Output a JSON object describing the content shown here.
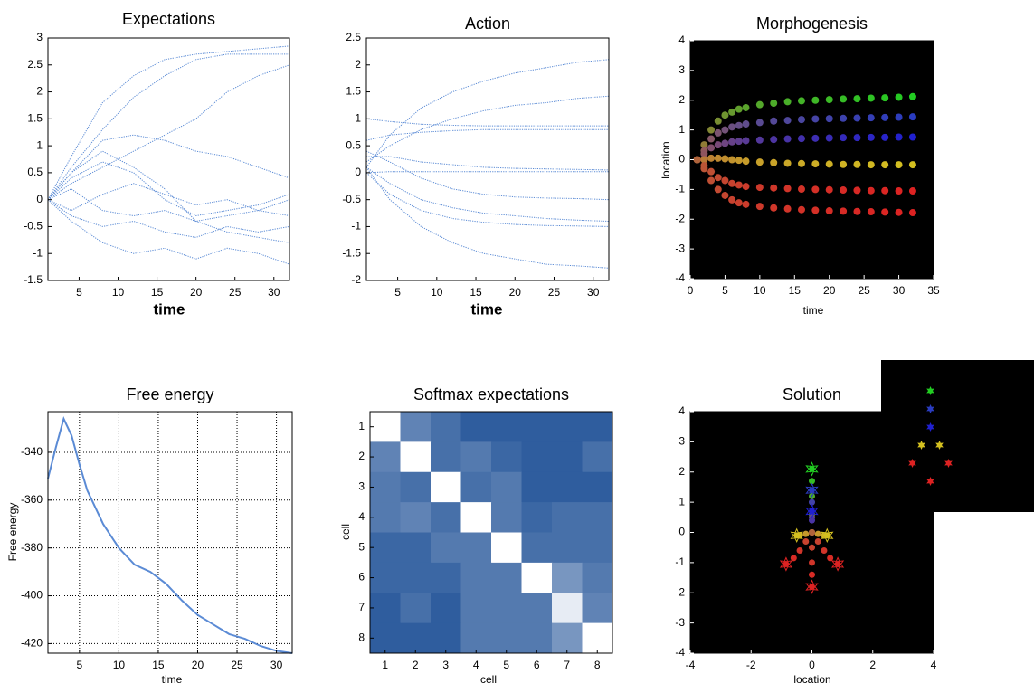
{
  "chart_data": [
    {
      "type": "line",
      "title": "Expectations",
      "x_label": "time",
      "x": [
        1,
        4,
        8,
        12,
        16,
        20,
        24,
        28,
        32
      ],
      "series": [
        {
          "values": [
            0,
            0.8,
            1.8,
            2.3,
            2.6,
            2.7,
            2.75,
            2.8,
            2.85
          ]
        },
        {
          "values": [
            0,
            0.6,
            1.3,
            1.9,
            2.3,
            2.6,
            2.7,
            2.7,
            2.7
          ]
        },
        {
          "values": [
            0,
            0.3,
            0.6,
            0.9,
            1.2,
            1.5,
            2.0,
            2.3,
            2.5
          ]
        },
        {
          "values": [
            0,
            0.5,
            1.1,
            1.2,
            1.1,
            0.9,
            0.8,
            0.6,
            0.4
          ]
        },
        {
          "values": [
            0,
            0.4,
            0.7,
            0.5,
            0.0,
            -0.3,
            -0.2,
            -0.1,
            0.1
          ]
        },
        {
          "values": [
            0,
            -0.3,
            -0.5,
            -0.4,
            -0.6,
            -0.7,
            -0.5,
            -0.6,
            -0.5
          ]
        },
        {
          "values": [
            0,
            -0.4,
            -0.8,
            -1.0,
            -0.9,
            -1.1,
            -0.9,
            -1.0,
            -1.2
          ]
        },
        {
          "values": [
            0,
            0.2,
            -0.2,
            -0.3,
            -0.2,
            -0.4,
            -0.3,
            -0.2,
            -0.3
          ]
        },
        {
          "values": [
            0,
            -0.2,
            0.1,
            0.3,
            0.1,
            -0.1,
            0.0,
            -0.2,
            0.0
          ]
        },
        {
          "values": [
            0,
            0.5,
            0.9,
            0.6,
            0.2,
            -0.4,
            -0.6,
            -0.7,
            -0.8
          ]
        }
      ],
      "color": "#5b8bd5",
      "line_style": "dotted",
      "xlim": [
        1,
        32
      ],
      "xticks": [
        5,
        10,
        15,
        20,
        25,
        30
      ],
      "ylim": [
        -1.5,
        3
      ],
      "yticks": [
        -1.5,
        -1,
        -0.5,
        0,
        0.5,
        1,
        1.5,
        2,
        2.5,
        3
      ]
    },
    {
      "type": "line",
      "title": "Action",
      "x_label": "time",
      "x": [
        1,
        4,
        8,
        12,
        16,
        20,
        24,
        28,
        32
      ],
      "series": [
        {
          "values": [
            1.0,
            0.95,
            0.9,
            0.88,
            0.87,
            0.87,
            0.87,
            0.87,
            0.87
          ]
        },
        {
          "values": [
            0.6,
            0.7,
            0.75,
            0.78,
            0.8,
            0.8,
            0.8,
            0.8,
            0.8
          ]
        },
        {
          "values": [
            0.1,
            0.7,
            1.2,
            1.5,
            1.7,
            1.85,
            1.95,
            2.05,
            2.1
          ]
        },
        {
          "values": [
            0.2,
            0.5,
            0.8,
            1.0,
            1.15,
            1.25,
            1.3,
            1.38,
            1.42
          ]
        },
        {
          "values": [
            0.3,
            0.3,
            0.2,
            0.15,
            0.1,
            0.08,
            0.07,
            0.06,
            0.05
          ]
        },
        {
          "values": [
            0.0,
            0.02,
            0.02,
            0.02,
            0.02,
            0.02,
            0.02,
            0.02,
            0.02
          ]
        },
        {
          "values": [
            0.4,
            0.2,
            -0.1,
            -0.3,
            -0.4,
            -0.45,
            -0.47,
            -0.48,
            -0.5
          ]
        },
        {
          "values": [
            0.1,
            -0.2,
            -0.5,
            -0.65,
            -0.75,
            -0.8,
            -0.85,
            -0.88,
            -0.9
          ]
        },
        {
          "values": [
            0.0,
            -0.4,
            -0.7,
            -0.85,
            -0.92,
            -0.96,
            -0.98,
            -0.99,
            -1.0
          ]
        },
        {
          "values": [
            0.1,
            -0.5,
            -1.0,
            -1.3,
            -1.5,
            -1.6,
            -1.7,
            -1.73,
            -1.77
          ]
        }
      ],
      "color": "#5b8bd5",
      "line_style": "dotted",
      "xlim": [
        1,
        32
      ],
      "xticks": [
        5,
        10,
        15,
        20,
        25,
        30
      ],
      "ylim": [
        -2,
        2.5
      ],
      "yticks": [
        -2,
        -1.5,
        -1,
        -0.5,
        0,
        0.5,
        1,
        1.5,
        2,
        2.5
      ]
    },
    {
      "type": "scatter",
      "title": "Morphogenesis",
      "x_label": "time",
      "y_label": "location",
      "x": [
        1,
        2,
        3,
        4,
        5,
        6,
        7,
        8,
        10,
        12,
        14,
        16,
        18,
        20,
        22,
        24,
        26,
        28,
        30,
        32
      ],
      "series": [
        {
          "color": "#22cc22",
          "values": [
            0,
            0.5,
            1.0,
            1.3,
            1.5,
            1.6,
            1.7,
            1.75,
            1.85,
            1.9,
            1.95,
            1.98,
            2.0,
            2.02,
            2.04,
            2.05,
            2.07,
            2.08,
            2.1,
            2.12
          ]
        },
        {
          "color": "#2a3cc0",
          "values": [
            0,
            0.3,
            0.7,
            0.9,
            1.0,
            1.1,
            1.15,
            1.2,
            1.25,
            1.3,
            1.32,
            1.35,
            1.37,
            1.38,
            1.39,
            1.4,
            1.41,
            1.42,
            1.43,
            1.44
          ]
        },
        {
          "color": "#2020d0",
          "values": [
            0,
            0.2,
            0.4,
            0.5,
            0.55,
            0.6,
            0.62,
            0.64,
            0.66,
            0.68,
            0.7,
            0.71,
            0.72,
            0.73,
            0.74,
            0.74,
            0.75,
            0.75,
            0.76,
            0.76
          ]
        },
        {
          "color": "#d4c020",
          "values": [
            0,
            0,
            0.05,
            0.05,
            0.03,
            0.0,
            -0.02,
            -0.05,
            -0.08,
            -0.1,
            -0.12,
            -0.13,
            -0.14,
            -0.15,
            -0.16,
            -0.16,
            -0.17,
            -0.17,
            -0.17,
            -0.17
          ]
        },
        {
          "color": "#dd2222",
          "values": [
            0,
            -0.2,
            -0.4,
            -0.6,
            -0.7,
            -0.8,
            -0.85,
            -0.9,
            -0.93,
            -0.95,
            -0.97,
            -0.99,
            -1.0,
            -1.01,
            -1.02,
            -1.03,
            -1.04,
            -1.04,
            -1.05,
            -1.05
          ]
        },
        {
          "color": "#dd2222",
          "values": [
            0,
            -0.3,
            -0.7,
            -1.0,
            -1.2,
            -1.35,
            -1.45,
            -1.5,
            -1.57,
            -1.62,
            -1.65,
            -1.68,
            -1.7,
            -1.72,
            -1.73,
            -1.74,
            -1.75,
            -1.76,
            -1.77,
            -1.78
          ]
        }
      ],
      "start_color": "#b0643c",
      "background": "#000000",
      "xlim": [
        0,
        35
      ],
      "xticks": [
        0,
        5,
        10,
        15,
        20,
        25,
        30,
        35
      ],
      "ylim": [
        -4,
        4
      ],
      "yticks": [
        -4,
        -3,
        -2,
        -1,
        0,
        1,
        2,
        3,
        4
      ]
    },
    {
      "type": "line",
      "title": "Free energy",
      "x_label": "time",
      "y_label": "Free energy",
      "x": [
        1,
        2,
        3,
        4,
        5,
        6,
        8,
        10,
        12,
        14,
        16,
        18,
        20,
        22,
        24,
        26,
        28,
        30,
        32
      ],
      "series": [
        {
          "values": [
            -351,
            -338,
            -326,
            -333,
            -345,
            -356,
            -370,
            -380,
            -387,
            -390,
            -395,
            -402,
            -408,
            -412,
            -416,
            -418,
            -421,
            -423,
            -424
          ]
        }
      ],
      "color": "#5b8bd5",
      "line_style": "solid",
      "grid": true,
      "xlim": [
        1,
        32
      ],
      "xticks": [
        5,
        10,
        15,
        20,
        25,
        30
      ],
      "ylim": [
        -424,
        -323
      ],
      "yticks": [
        -420,
        -400,
        -380,
        -360,
        -340
      ]
    },
    {
      "type": "heatmap",
      "title": "Softmax expectations",
      "x_label": "cell",
      "y_label": "cell",
      "z": [
        [
          1,
          0.35,
          0.25,
          0.15,
          0.15,
          0.15,
          0.15,
          0.15
        ],
        [
          0.35,
          1,
          0.25,
          0.3,
          0.2,
          0.15,
          0.15,
          0.25
        ],
        [
          0.3,
          0.25,
          1,
          0.25,
          0.3,
          0.15,
          0.15,
          0.15
        ],
        [
          0.3,
          0.35,
          0.25,
          1,
          0.3,
          0.2,
          0.25,
          0.25
        ],
        [
          0.2,
          0.2,
          0.3,
          0.3,
          1,
          0.25,
          0.25,
          0.25
        ],
        [
          0.2,
          0.2,
          0.2,
          0.3,
          0.3,
          1,
          0.45,
          0.3
        ],
        [
          0.15,
          0.25,
          0.15,
          0.3,
          0.3,
          0.3,
          0.9,
          0.35
        ],
        [
          0.15,
          0.15,
          0.15,
          0.3,
          0.3,
          0.3,
          0.45,
          1
        ]
      ],
      "colormap": [
        "#2f5d9e",
        "#ffffff"
      ],
      "y_reversed": true,
      "xlim": [
        0.5,
        8.5
      ],
      "xticks": [
        1,
        2,
        3,
        4,
        5,
        6,
        7,
        8
      ],
      "ylim": [
        0.5,
        8.5
      ],
      "yticks": [
        1,
        2,
        3,
        4,
        5,
        6,
        7,
        8
      ]
    },
    {
      "type": "trajectory",
      "title": "Solution",
      "x_label": "location",
      "series": [
        {
          "color": "#22cc22",
          "x": [
            0,
            0,
            0,
            0,
            0
          ],
          "y": [
            0,
            0.6,
            1.2,
            1.7,
            2.1
          ]
        },
        {
          "color": "#2a3cc0",
          "x": [
            0,
            0,
            0,
            0
          ],
          "y": [
            0,
            0.5,
            1.0,
            1.4
          ]
        },
        {
          "color": "#2020d0",
          "x": [
            0,
            0,
            0
          ],
          "y": [
            0,
            0.4,
            0.7
          ]
        },
        {
          "color": "#d4c020",
          "x": [
            0,
            -0.2,
            -0.4,
            -0.5
          ],
          "y": [
            0,
            -0.05,
            -0.1,
            -0.1
          ]
        },
        {
          "color": "#d4c020",
          "x": [
            0,
            0.2,
            0.4,
            0.5
          ],
          "y": [
            0,
            -0.05,
            -0.1,
            -0.1
          ]
        },
        {
          "color": "#dd2222",
          "x": [
            0,
            -0.2,
            -0.4,
            -0.6,
            -0.85
          ],
          "y": [
            0,
            -0.3,
            -0.6,
            -0.85,
            -1.05
          ]
        },
        {
          "color": "#dd2222",
          "x": [
            0,
            0.2,
            0.4,
            0.6,
            0.85
          ],
          "y": [
            0,
            -0.3,
            -0.6,
            -0.85,
            -1.05
          ]
        },
        {
          "color": "#dd2222",
          "x": [
            0,
            0,
            0,
            0,
            0
          ],
          "y": [
            0,
            -0.5,
            -1.0,
            -1.4,
            -1.8
          ]
        }
      ],
      "start_color": "#b0643c",
      "background": "#000000",
      "xlim": [
        -4,
        4
      ],
      "xticks": [
        -4,
        -2,
        0,
        2,
        4
      ],
      "ylim": [
        -4,
        4
      ],
      "yticks": [
        -4,
        -3,
        -2,
        -1,
        0,
        1,
        2,
        3,
        4
      ],
      "inset": {
        "background": "#000000",
        "x": [
          0,
          0,
          0,
          -0.5,
          0.5,
          -1,
          1,
          0
        ],
        "y": [
          2,
          1,
          0,
          -1,
          -1,
          -2,
          -2,
          -3
        ],
        "colors": [
          "#22cc22",
          "#2a3cc0",
          "#2020d0",
          "#d4c020",
          "#d4c020",
          "#dd2222",
          "#dd2222",
          "#dd2222"
        ]
      }
    }
  ]
}
